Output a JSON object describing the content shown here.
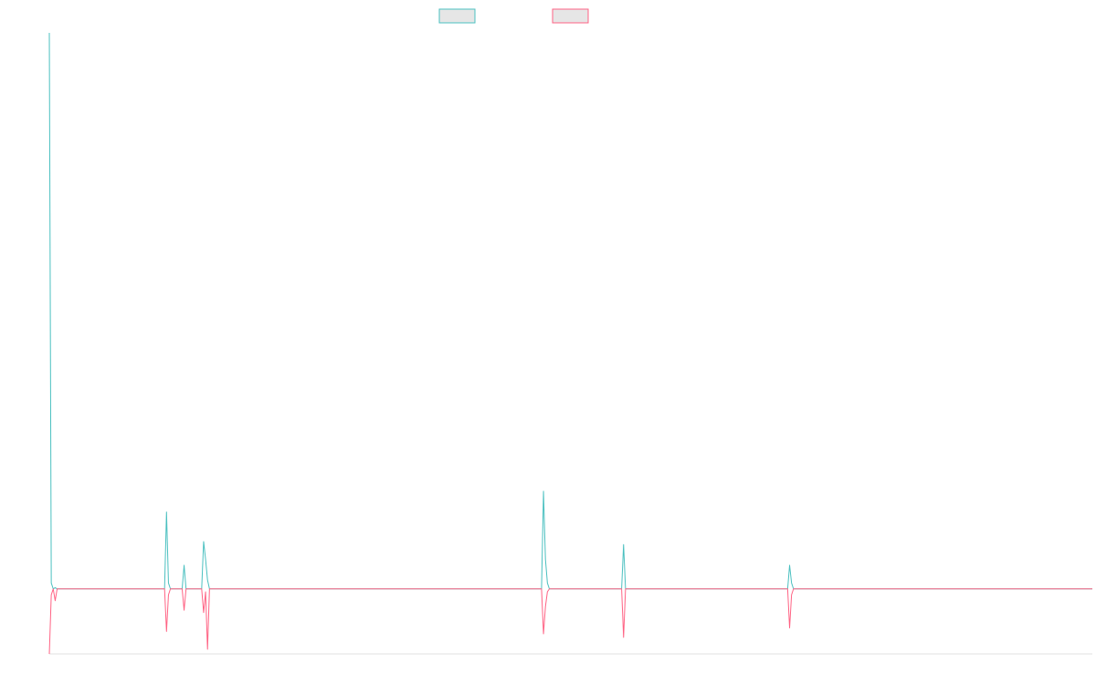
{
  "colors": {
    "series_a": "#4bc0c0",
    "series_b": "#ff6384",
    "legend_fill": "#e6e6e6",
    "axis": "#e0e0e0"
  },
  "chart_data": {
    "type": "line",
    "title": "",
    "xlabel": "",
    "ylabel": "",
    "legend_position": "top-center",
    "grid": false,
    "x": [
      0,
      0.25,
      0.5,
      0.75,
      1,
      1.25,
      1.5,
      14.75,
      15,
      15.25,
      15.5,
      17,
      17.25,
      17.5,
      19.5,
      19.75,
      20,
      20.25,
      20.5,
      63,
      63.25,
      63.5,
      63.75,
      64,
      73.25,
      73.5,
      73.75,
      94.5,
      94.75,
      95,
      95.25,
      133.5
    ],
    "ylim": [
      -1.1,
      9.4
    ],
    "series": [
      {
        "values": [
          9.4,
          0.1,
          0.0,
          0.02,
          0.0,
          0.0,
          0.0,
          0.0,
          1.3,
          0.1,
          0.0,
          0.0,
          0.4,
          0.0,
          0.0,
          0.8,
          0.5,
          0.15,
          0.0,
          0.0,
          1.65,
          0.5,
          0.1,
          0.0,
          0.0,
          0.75,
          0.0,
          0.0,
          0.4,
          0.1,
          0.0,
          0.0
        ]
      },
      {
        "values": [
          -1.1,
          -0.1,
          0.0,
          -0.2,
          0.0,
          0.0,
          0.0,
          0.0,
          -0.72,
          -0.1,
          0.0,
          0.0,
          -0.36,
          0.0,
          0.0,
          -0.4,
          -0.05,
          -1.02,
          0.0,
          0.0,
          -0.76,
          -0.3,
          -0.05,
          0.0,
          0.0,
          -0.82,
          0.0,
          0.0,
          -0.66,
          -0.1,
          0.0,
          0.0
        ]
      }
    ]
  }
}
